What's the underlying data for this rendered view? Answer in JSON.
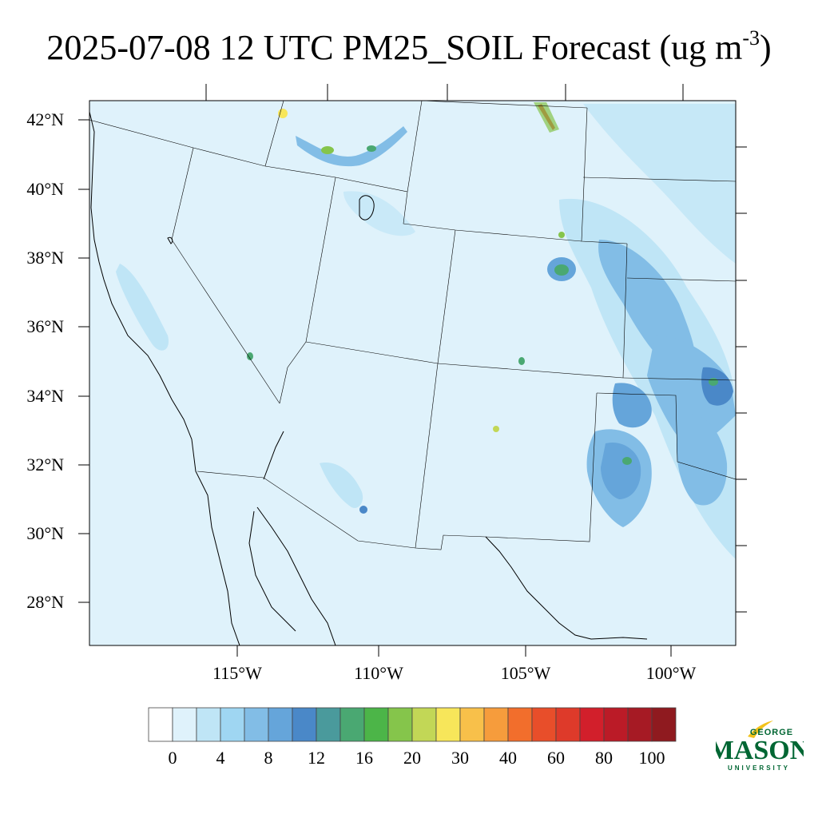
{
  "title": {
    "main": "2025-07-08 12 UTC PM25_SOIL Forecast (ug m",
    "sup": "-3",
    "close": ")"
  },
  "map": {
    "lat_labels": [
      "42°N",
      "40°N",
      "38°N",
      "36°N",
      "34°N",
      "32°N",
      "30°N",
      "28°N"
    ],
    "lon_labels": [
      "115°W",
      "110°W",
      "105°W",
      "100°W"
    ]
  },
  "colorbar": {
    "labels": [
      "0",
      "4",
      "8",
      "12",
      "16",
      "20",
      "30",
      "40",
      "60",
      "80",
      "100"
    ],
    "colors": [
      "#ffffff",
      "#dff2fb",
      "#bfe5f6",
      "#9fd6f2",
      "#82bde6",
      "#65a5da",
      "#4a88c8",
      "#4a9a9c",
      "#4aa872",
      "#4cb548",
      "#85c54b",
      "#c2d756",
      "#f7e65a",
      "#f8c04a",
      "#f69c3c",
      "#f26e2c",
      "#e84e2a",
      "#de3a2a",
      "#d21f2b",
      "#bb1b27",
      "#a61a24",
      "#8f1a1f"
    ]
  },
  "logo": {
    "line1": "GEORGE",
    "line2": "MASON",
    "line3": "UNIVERSITY"
  }
}
